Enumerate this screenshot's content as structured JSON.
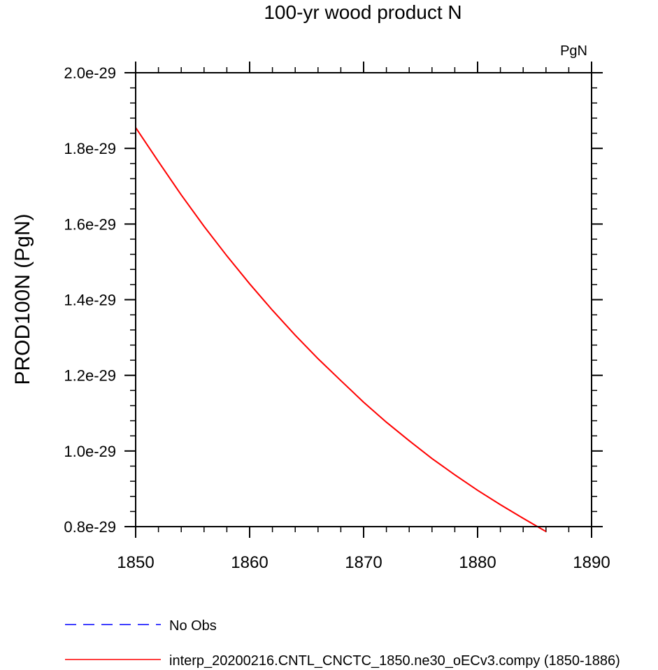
{
  "chart_data": {
    "type": "line",
    "title": "100-yr wood product N",
    "units_label": "PgN",
    "ylabel": "PROD100N  (PgN)",
    "xlabel": "",
    "xlim": [
      1850,
      1890
    ],
    "ylim": [
      8e-30,
      2e-29
    ],
    "x_ticks": [
      1850,
      1860,
      1870,
      1880,
      1890
    ],
    "x_tick_labels": [
      "1850",
      "1860",
      "1870",
      "1880",
      "1890"
    ],
    "y_ticks": [
      8e-30,
      1e-29,
      1.2e-29,
      1.4e-29,
      1.6e-29,
      1.8e-29,
      2e-29
    ],
    "y_tick_labels": [
      "0.8e-29",
      "1.0e-29",
      "1.2e-29",
      "1.4e-29",
      "1.6e-29",
      "1.8e-29",
      "2.0e-29"
    ],
    "grid": false,
    "legend_position": "bottom",
    "series": [
      {
        "name": "interp_20200216.CNTL_CNCTC_1850.ne30_oECv3.compy (1850-1886)",
        "color": "#ff0000",
        "style": "solid",
        "x": [
          1850,
          1852,
          1854,
          1856,
          1858,
          1860,
          1862,
          1864,
          1866,
          1868,
          1870,
          1872,
          1874,
          1876,
          1878,
          1880,
          1882,
          1884,
          1886
        ],
        "y": [
          1.855e-29,
          1.765e-29,
          1.677e-29,
          1.594e-29,
          1.516e-29,
          1.442e-29,
          1.372e-29,
          1.306e-29,
          1.244e-29,
          1.186e-29,
          1.129e-29,
          1.076e-29,
          1.027e-29,
          9.8e-30,
          9.37e-30,
          8.96e-30,
          8.58e-30,
          8.22e-30,
          7.87e-30
        ]
      }
    ],
    "legend": [
      {
        "label": "No Obs",
        "color": "#0000ff",
        "style": "dashed"
      },
      {
        "label": "interp_20200216.CNTL_CNCTC_1850.ne30_oECv3.compy (1850-1886)",
        "color": "#ff0000",
        "style": "solid"
      }
    ]
  }
}
